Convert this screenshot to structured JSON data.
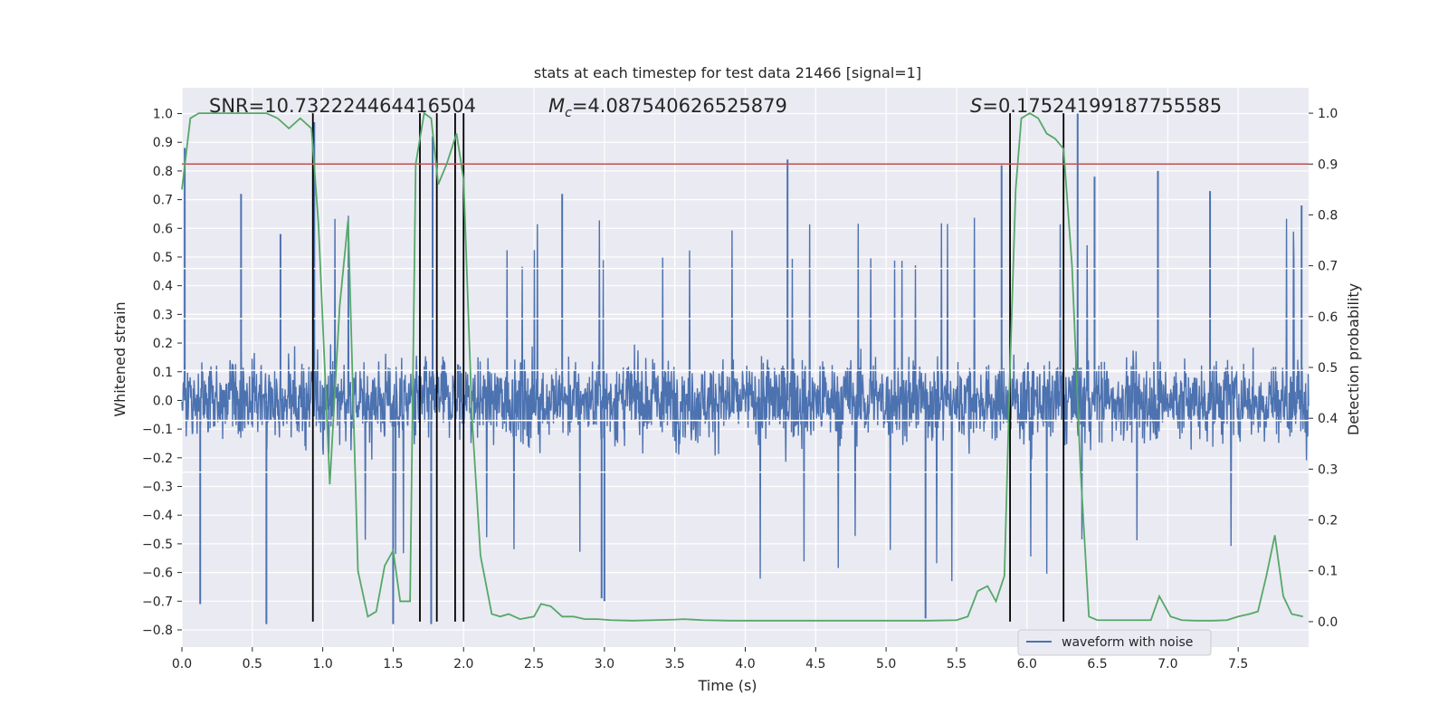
{
  "chart_data": {
    "type": "line",
    "title": "stats at each timestep for test data 21466 [signal=1]",
    "xlabel": "Time (s)",
    "ylabel": "Whitened strain",
    "y2label": "Detection probability",
    "xlim": [
      0.0,
      8.0
    ],
    "ylim": [
      -0.86,
      1.09
    ],
    "y2lim": [
      -0.05,
      1.05
    ],
    "x_ticks": [
      "0.0",
      "0.5",
      "1.0",
      "1.5",
      "2.0",
      "2.5",
      "3.0",
      "3.5",
      "4.0",
      "4.5",
      "5.0",
      "5.5",
      "6.0",
      "6.5",
      "7.0",
      "7.5"
    ],
    "y_ticks": [
      "1.0",
      "0.9",
      "0.8",
      "0.7",
      "0.6",
      "0.5",
      "0.4",
      "0.3",
      "0.2",
      "0.1",
      "0.0",
      "−0.1",
      "−0.2",
      "−0.3",
      "−0.4",
      "−0.5",
      "−0.6",
      "−0.7",
      "−0.8"
    ],
    "y2_ticks": [
      "1.0",
      "0.9",
      "0.8",
      "0.7",
      "0.6",
      "0.5",
      "0.4",
      "0.3",
      "0.2",
      "0.1",
      "0.0"
    ],
    "annotations": {
      "snr": "SNR=10.732224464416504",
      "mc_prefix": "M",
      "mc_sub": "c",
      "mc_value": "=4.087540626525879",
      "s_prefix": "S",
      "s_value": "=0.17524199187755585"
    },
    "threshold": {
      "value": 0.9,
      "axis": "y2",
      "color": "#c44e52"
    },
    "vertical_markers_s": [
      0.93,
      1.69,
      1.81,
      1.94,
      2.0,
      5.88,
      6.26
    ],
    "white_hlines_strain": [
      0.46,
      0.285,
      0.105,
      -0.07,
      -0.25
    ],
    "series": [
      {
        "name": "waveform with noise",
        "axis": "y",
        "color": "#4c72b0",
        "envelope": "noise spikes between about -0.78 and 1.0",
        "spikes": [
          {
            "x": 0.02,
            "y": 0.88
          },
          {
            "x": 0.42,
            "y": 0.72
          },
          {
            "x": 0.7,
            "y": 0.58
          },
          {
            "x": 0.94,
            "y": 0.97
          },
          {
            "x": 1.78,
            "y": 0.92
          },
          {
            "x": 2.7,
            "y": 0.72
          },
          {
            "x": 4.3,
            "y": 0.84
          },
          {
            "x": 5.82,
            "y": 0.82
          },
          {
            "x": 6.36,
            "y": 1.0
          },
          {
            "x": 6.48,
            "y": 0.78
          },
          {
            "x": 6.93,
            "y": 0.8
          },
          {
            "x": 7.3,
            "y": 0.73
          },
          {
            "x": 7.95,
            "y": 0.68
          },
          {
            "x": 0.6,
            "y": -0.78
          },
          {
            "x": 1.5,
            "y": -0.78
          },
          {
            "x": 1.77,
            "y": -0.78
          },
          {
            "x": 5.28,
            "y": -0.76
          },
          {
            "x": 2.98,
            "y": -0.69
          },
          {
            "x": 0.13,
            "y": -0.71
          },
          {
            "x": 3.0,
            "y": -0.7
          }
        ]
      },
      {
        "name": "",
        "axis": "y2",
        "color": "#55a868",
        "x": [
          0.0,
          0.06,
          0.12,
          0.2,
          0.3,
          0.4,
          0.5,
          0.6,
          0.68,
          0.76,
          0.84,
          0.92,
          0.97,
          1.05,
          1.12,
          1.18,
          1.25,
          1.32,
          1.38,
          1.44,
          1.5,
          1.55,
          1.62,
          1.66,
          1.72,
          1.77,
          1.82,
          1.88,
          1.95,
          2.0,
          2.06,
          2.12,
          2.2,
          2.26,
          2.32,
          2.4,
          2.5,
          2.55,
          2.62,
          2.7,
          2.78,
          2.86,
          2.95,
          3.05,
          3.2,
          3.35,
          3.5,
          3.56,
          3.7,
          3.9,
          4.1,
          4.3,
          4.5,
          4.7,
          4.9,
          5.1,
          5.3,
          5.5,
          5.58,
          5.65,
          5.72,
          5.78,
          5.84,
          5.88,
          5.92,
          5.96,
          6.02,
          6.08,
          6.14,
          6.2,
          6.26,
          6.32,
          6.38,
          6.44,
          6.5,
          6.56,
          6.64,
          6.72,
          6.8,
          6.88,
          6.94,
          7.02,
          7.1,
          7.2,
          7.32,
          7.42,
          7.5,
          7.58,
          7.64,
          7.7,
          7.76,
          7.82,
          7.88,
          7.96
        ],
        "y": [
          0.85,
          0.99,
          1.0,
          1.0,
          1.0,
          1.0,
          1.0,
          1.0,
          0.99,
          0.97,
          0.99,
          0.97,
          0.78,
          0.27,
          0.62,
          0.79,
          0.1,
          0.01,
          0.02,
          0.11,
          0.14,
          0.04,
          0.04,
          0.9,
          1.0,
          0.99,
          0.86,
          0.9,
          0.96,
          0.87,
          0.4,
          0.13,
          0.015,
          0.01,
          0.015,
          0.005,
          0.01,
          0.035,
          0.03,
          0.01,
          0.01,
          0.005,
          0.005,
          0.003,
          0.002,
          0.003,
          0.004,
          0.005,
          0.003,
          0.002,
          0.002,
          0.002,
          0.002,
          0.002,
          0.002,
          0.002,
          0.002,
          0.003,
          0.01,
          0.06,
          0.07,
          0.04,
          0.09,
          0.5,
          0.85,
          0.99,
          1.0,
          0.99,
          0.96,
          0.95,
          0.93,
          0.7,
          0.3,
          0.01,
          0.003,
          0.003,
          0.003,
          0.003,
          0.003,
          0.003,
          0.05,
          0.01,
          0.003,
          0.002,
          0.002,
          0.003,
          0.01,
          0.015,
          0.02,
          0.09,
          0.17,
          0.05,
          0.015,
          0.01
        ]
      }
    ],
    "legend": {
      "position": "lower-right",
      "entries": [
        "waveform with noise"
      ]
    },
    "grid": true
  }
}
